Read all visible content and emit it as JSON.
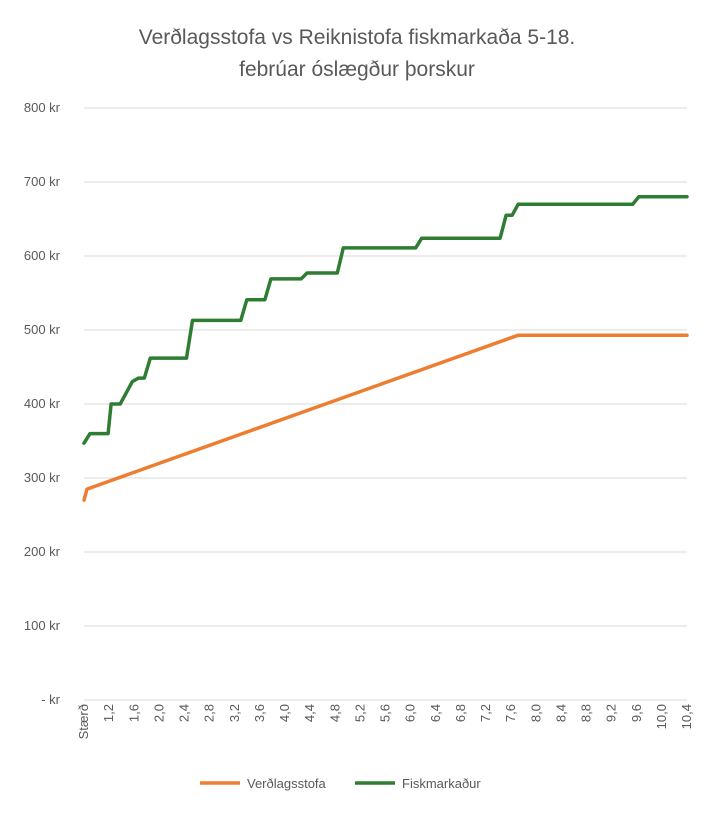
{
  "chart_data": {
    "type": "line",
    "title_line1": "Verðlagsstofa vs Reiknistofa fiskmarkaða 5-18.",
    "title_line2": "febrúar óslægður þorskur",
    "xlabel": "",
    "ylabel": "",
    "ylim": [
      0,
      800
    ],
    "yticks": [
      "- kr",
      "100 kr",
      "200 kr",
      "300 kr",
      "400 kr",
      "500 kr",
      "600 kr",
      "700 kr",
      "800 kr"
    ],
    "xticks": [
      "Stærð",
      "1,2",
      "1,6",
      "2,0",
      "2,4",
      "2,8",
      "3,2",
      "3,6",
      "4,0",
      "4,4",
      "4,8",
      "5,2",
      "5,6",
      "6,0",
      "6,4",
      "6,8",
      "7,2",
      "7,6",
      "8,0",
      "8,4",
      "8,8",
      "9,2",
      "9,6",
      "10,0",
      "10,4"
    ],
    "grid": true,
    "legend_position": "bottom",
    "series": [
      {
        "name": "Verðlagsstofa",
        "color": "#ED7D31",
        "points": [
          [
            0.8,
            270
          ],
          [
            0.85,
            285
          ],
          [
            8.0,
            493
          ],
          [
            10.8,
            493
          ]
        ]
      },
      {
        "name": "Fiskmarkaður",
        "color": "#2E7D32",
        "points": [
          [
            0.8,
            347
          ],
          [
            0.9,
            360
          ],
          [
            1.2,
            360
          ],
          [
            1.25,
            400
          ],
          [
            1.4,
            400
          ],
          [
            1.5,
            415
          ],
          [
            1.6,
            430
          ],
          [
            1.7,
            435
          ],
          [
            1.8,
            435
          ],
          [
            1.9,
            462
          ],
          [
            2.5,
            462
          ],
          [
            2.6,
            513
          ],
          [
            3.4,
            513
          ],
          [
            3.5,
            541
          ],
          [
            3.8,
            541
          ],
          [
            3.9,
            569
          ],
          [
            4.4,
            569
          ],
          [
            4.5,
            577
          ],
          [
            5.0,
            577
          ],
          [
            5.1,
            611
          ],
          [
            6.3,
            611
          ],
          [
            6.4,
            624
          ],
          [
            7.7,
            624
          ],
          [
            7.8,
            655
          ],
          [
            7.9,
            655
          ],
          [
            8.0,
            670
          ],
          [
            9.9,
            670
          ],
          [
            10.0,
            680
          ],
          [
            10.8,
            680
          ]
        ]
      }
    ]
  }
}
